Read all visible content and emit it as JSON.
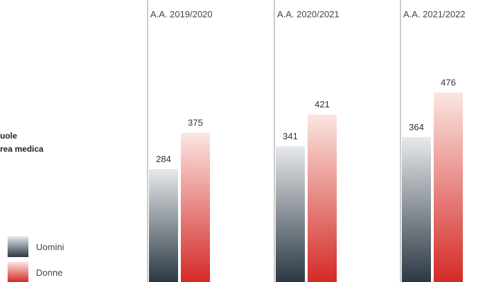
{
  "side_label": [
    "uole",
    "rea medica"
  ],
  "chart_data": {
    "type": "bar",
    "categories": [
      "A.A. 2019/2020",
      "A.A. 2020/2021",
      "A.A. 2021/2022"
    ],
    "series": [
      {
        "name": "Uomini",
        "values": [
          284,
          341,
          364
        ]
      },
      {
        "name": "Donne",
        "values": [
          375,
          421,
          476
        ]
      }
    ],
    "ylim": [
      0,
      560
    ],
    "grid": false,
    "legend": "bottom-left"
  },
  "colors": {
    "uomini_top": "#e7e9ec",
    "uomini_bottom": "#2b3843",
    "donne_top": "#fbe6e1",
    "donne_bottom": "#d42a27",
    "separator": "#9a9a9a"
  }
}
